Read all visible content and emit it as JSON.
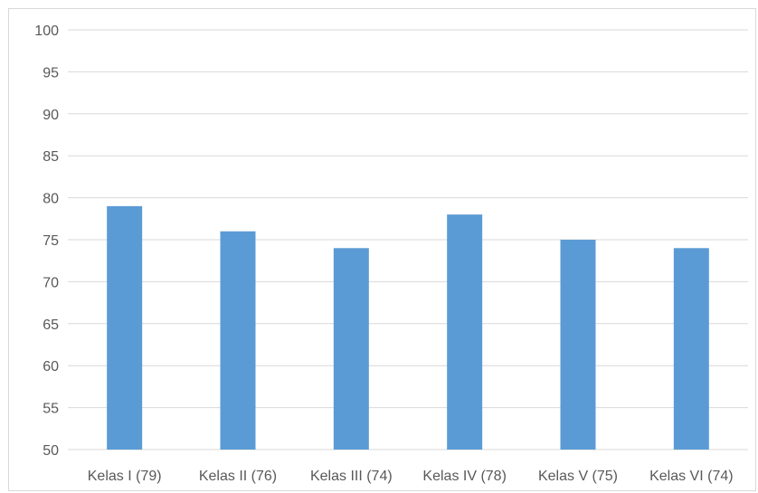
{
  "chart_data": {
    "type": "bar",
    "title": "",
    "xlabel": "",
    "ylabel": "",
    "categories": [
      "Kelas I (79)",
      "Kelas II (76)",
      "Kelas III (74)",
      "Kelas IV (78)",
      "Kelas V (75)",
      "Kelas VI (74)"
    ],
    "values": [
      79,
      76,
      74,
      78,
      75,
      74
    ],
    "ylim": [
      50,
      100
    ],
    "yticks": [
      "50",
      "55",
      "60",
      "65",
      "70",
      "75",
      "80",
      "85",
      "90",
      "95",
      "100"
    ],
    "grid": true,
    "legend": "none",
    "bar_color": "#5b9bd5",
    "grid_color": "#d9d9d9"
  }
}
